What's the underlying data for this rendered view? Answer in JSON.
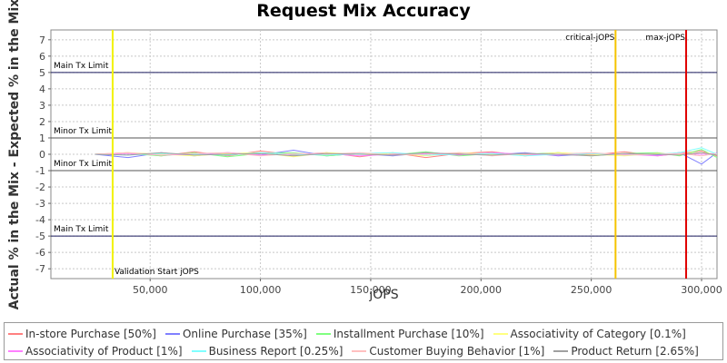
{
  "chart_data": {
    "type": "line",
    "title": "Request Mix Accuracy",
    "xlabel": "jOPS",
    "ylabel": "Actual % in the Mix - Expected % in the Mix",
    "xlim": [
      5000,
      307000
    ],
    "ylim": [
      -7.6,
      7.6
    ],
    "x_ticks": [
      50000,
      100000,
      150000,
      200000,
      250000,
      300000
    ],
    "x_tick_labels": [
      "50,000",
      "100,000",
      "150,000",
      "200,000",
      "250,000",
      "300,000"
    ],
    "y_ticks": [
      7,
      6,
      5,
      4,
      3,
      2,
      1,
      0,
      -1,
      -2,
      -3,
      -4,
      -5,
      -6,
      -7
    ],
    "grid": true,
    "legend_position": "bottom",
    "horizontal_lines": [
      {
        "label": "Main Tx Limit",
        "y": 5,
        "color": "#1a1a5e"
      },
      {
        "label": "Minor Tx Limit",
        "y": 1,
        "color": "#555555"
      },
      {
        "label": "Minor Tx Limit",
        "y": -1,
        "color": "#555555"
      },
      {
        "label": "Main Tx Limit",
        "y": -5,
        "color": "#1a1a5e"
      }
    ],
    "vertical_lines": [
      {
        "label": "Validation Start jOPS",
        "x": 33000,
        "color": "#f2f200",
        "label_pos": "bottom"
      },
      {
        "label": "critical-jOPS",
        "x": 261000,
        "color": "#f5c400",
        "label_pos": "top-left"
      },
      {
        "label": "max-jOPS",
        "x": 293000,
        "color": "#e00000",
        "label_pos": "top-left"
      }
    ],
    "series": [
      {
        "name": "In-store Purchase [50%]",
        "color": "#ff8080",
        "x": [
          25000,
          40000,
          55000,
          70000,
          85000,
          100000,
          115000,
          130000,
          145000,
          160000,
          175000,
          190000,
          205000,
          220000,
          235000,
          250000,
          265000,
          280000,
          290000,
          300000,
          307000
        ],
        "y": [
          0.0,
          0.1,
          -0.1,
          0.15,
          -0.1,
          0.2,
          -0.05,
          0.1,
          -0.15,
          0.1,
          -0.2,
          0.05,
          0.15,
          -0.1,
          0.1,
          -0.05,
          0.15,
          -0.1,
          0.05,
          0.2,
          -0.1
        ]
      },
      {
        "name": "Online Purchase [35%]",
        "color": "#8080ff",
        "x": [
          25000,
          40000,
          55000,
          70000,
          85000,
          100000,
          115000,
          130000,
          145000,
          160000,
          175000,
          190000,
          205000,
          220000,
          235000,
          250000,
          265000,
          280000,
          290000,
          300000,
          307000
        ],
        "y": [
          0.0,
          -0.2,
          0.1,
          -0.1,
          0.1,
          -0.05,
          0.25,
          -0.1,
          0.05,
          -0.1,
          0.1,
          0.0,
          -0.05,
          0.1,
          -0.1,
          0.05,
          0.0,
          -0.05,
          0.1,
          -0.6,
          0.1
        ]
      },
      {
        "name": "Installment Purchase [10%]",
        "color": "#80ff80",
        "x": [
          25000,
          40000,
          55000,
          70000,
          85000,
          100000,
          115000,
          130000,
          145000,
          160000,
          175000,
          190000,
          205000,
          220000,
          235000,
          250000,
          265000,
          280000,
          290000,
          300000,
          307000
        ],
        "y": [
          0.0,
          0.05,
          -0.1,
          0.1,
          -0.15,
          0.05,
          0.1,
          -0.1,
          0.05,
          -0.05,
          0.15,
          -0.1,
          0.05,
          0.0,
          0.1,
          -0.1,
          0.05,
          0.1,
          -0.1,
          0.3,
          -0.2
        ]
      },
      {
        "name": "Associativity of Category [0.1%]",
        "color": "#ffff80",
        "x": [
          25000,
          40000,
          55000,
          70000,
          85000,
          100000,
          115000,
          130000,
          145000,
          160000,
          175000,
          190000,
          205000,
          220000,
          235000,
          250000,
          265000,
          280000,
          290000,
          300000,
          307000
        ],
        "y": [
          0.0,
          0.1,
          0.0,
          -0.1,
          0.05,
          0.1,
          -0.15,
          0.1,
          0.0,
          0.05,
          -0.1,
          0.1,
          0.0,
          -0.05,
          0.1,
          0.0,
          -0.1,
          0.05,
          0.0,
          0.1,
          0.0
        ]
      },
      {
        "name": "Associativity of Product [1%]",
        "color": "#ff80ff",
        "x": [
          25000,
          40000,
          55000,
          70000,
          85000,
          100000,
          115000,
          130000,
          145000,
          160000,
          175000,
          190000,
          205000,
          220000,
          235000,
          250000,
          265000,
          280000,
          290000,
          300000,
          307000
        ],
        "y": [
          0.0,
          0.05,
          -0.05,
          0.0,
          0.1,
          -0.05,
          0.0,
          0.05,
          -0.1,
          0.0,
          0.05,
          -0.05,
          0.1,
          0.0,
          -0.05,
          0.05,
          0.0,
          -0.1,
          0.05,
          0.0,
          0.05
        ]
      },
      {
        "name": "Business Report [0.25%]",
        "color": "#80ffff",
        "x": [
          25000,
          40000,
          55000,
          70000,
          85000,
          100000,
          115000,
          130000,
          145000,
          160000,
          175000,
          190000,
          205000,
          220000,
          235000,
          250000,
          265000,
          280000,
          290000,
          300000,
          307000
        ],
        "y": [
          0.0,
          -0.05,
          0.05,
          0.0,
          -0.05,
          0.1,
          0.0,
          -0.05,
          0.05,
          0.1,
          -0.05,
          0.0,
          0.05,
          -0.1,
          0.0,
          0.05,
          -0.05,
          0.0,
          0.1,
          0.4,
          0.0
        ]
      },
      {
        "name": "Customer Buying Behavior [1%]",
        "color": "#ffc0c0",
        "x": [
          25000,
          40000,
          55000,
          70000,
          85000,
          100000,
          115000,
          130000,
          145000,
          160000,
          175000,
          190000,
          205000,
          220000,
          235000,
          250000,
          265000,
          280000,
          290000,
          300000,
          307000
        ],
        "y": [
          0.0,
          0.1,
          -0.05,
          0.05,
          0.1,
          -0.1,
          0.05,
          0.0,
          0.1,
          -0.05,
          0.0,
          0.1,
          -0.1,
          0.05,
          0.0,
          0.1,
          -0.05,
          0.0,
          0.05,
          -0.1,
          0.05
        ]
      },
      {
        "name": "Product Return [2.65%]",
        "color": "#a0a0a0",
        "x": [
          25000,
          40000,
          55000,
          70000,
          85000,
          100000,
          115000,
          130000,
          145000,
          160000,
          175000,
          190000,
          205000,
          220000,
          235000,
          250000,
          265000,
          280000,
          290000,
          300000,
          307000
        ],
        "y": [
          0.0,
          -0.05,
          0.1,
          -0.05,
          0.0,
          0.05,
          -0.1,
          0.05,
          0.0,
          -0.05,
          0.1,
          0.0,
          -0.05,
          0.05,
          0.0,
          -0.1,
          0.05,
          0.0,
          -0.05,
          0.1,
          -0.05
        ]
      }
    ]
  }
}
